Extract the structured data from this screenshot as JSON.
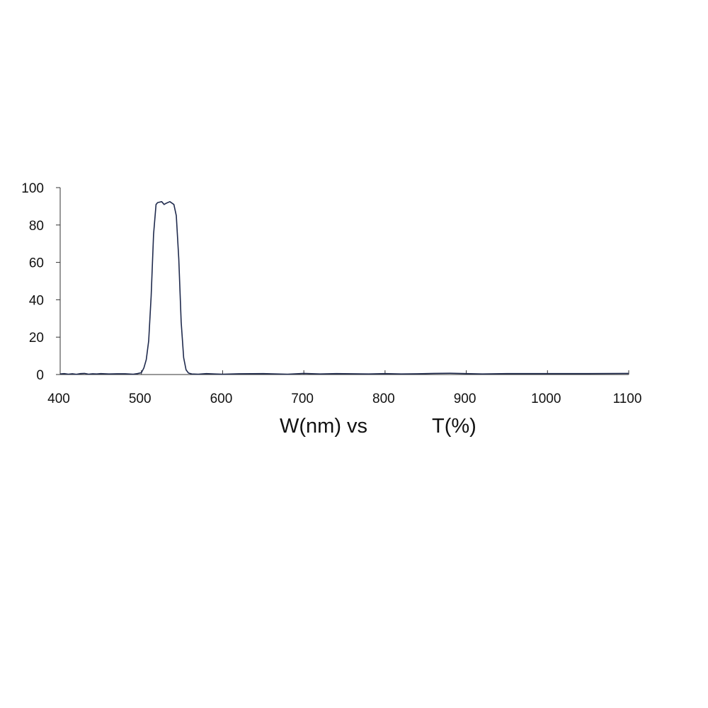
{
  "chart_data": {
    "type": "line",
    "title": "",
    "xlabel": "W(nm) vs",
    "ylabel": "T(%)",
    "xlim": [
      400,
      1100
    ],
    "ylim": [
      0,
      100
    ],
    "x_ticks": [
      400,
      500,
      600,
      700,
      800,
      900,
      1000,
      1100
    ],
    "y_ticks": [
      0,
      20,
      40,
      60,
      80,
      100
    ],
    "grid": false,
    "legend": "none",
    "colors": {
      "line": "#1f2a4d",
      "axis": "#333333"
    },
    "series": [
      {
        "x": [
          400,
          405,
          410,
          415,
          420,
          425,
          430,
          435,
          440,
          445,
          450,
          460,
          470,
          480,
          490,
          495,
          500,
          503,
          506,
          509,
          512,
          515,
          518,
          520,
          525,
          528,
          530,
          535,
          540,
          543,
          546,
          549,
          552,
          555,
          558,
          562,
          570,
          580,
          590,
          600,
          620,
          650,
          680,
          700,
          720,
          740,
          760,
          780,
          800,
          820,
          840,
          860,
          880,
          900,
          920,
          950,
          1000,
          1050,
          1100
        ],
        "values": [
          0.3,
          0.5,
          0.2,
          0.4,
          0.1,
          0.5,
          0.6,
          0.2,
          0.4,
          0.3,
          0.5,
          0.3,
          0.4,
          0.4,
          0.2,
          0.5,
          1.0,
          3.5,
          8.0,
          18.0,
          42.0,
          75.0,
          91.0,
          92.0,
          92.5,
          91.0,
          91.5,
          92.5,
          91.0,
          85.0,
          62.0,
          28.0,
          9.0,
          2.5,
          0.8,
          0.3,
          0.2,
          0.5,
          0.3,
          0.2,
          0.4,
          0.5,
          0.2,
          0.6,
          0.3,
          0.5,
          0.4,
          0.3,
          0.5,
          0.3,
          0.4,
          0.6,
          0.7,
          0.5,
          0.3,
          0.5,
          0.5,
          0.5,
          0.6
        ]
      }
    ]
  }
}
